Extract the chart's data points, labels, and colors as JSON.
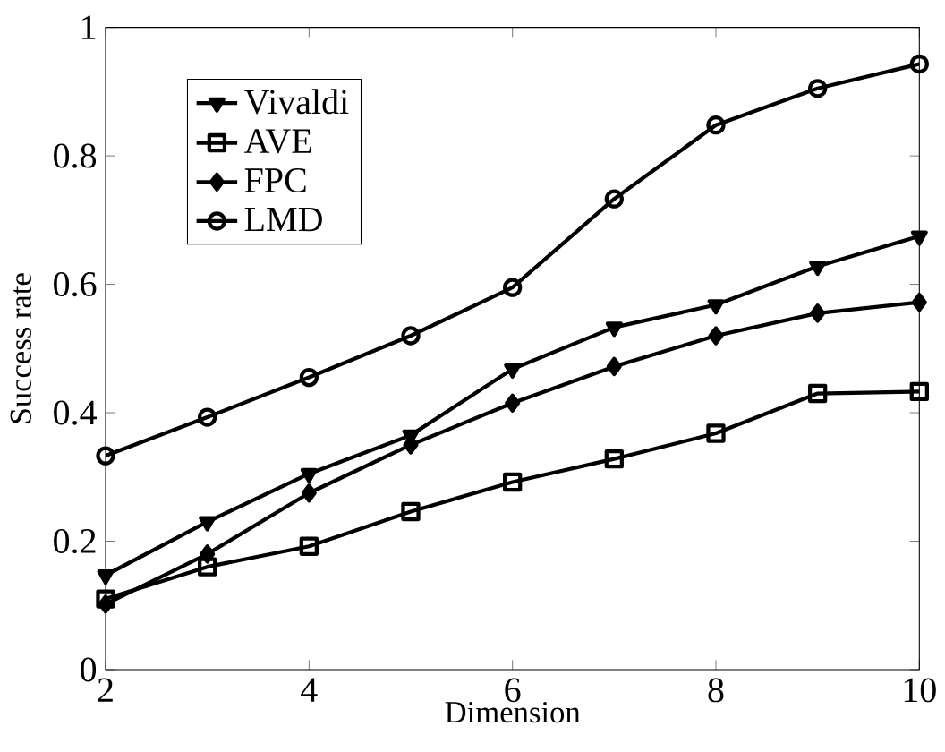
{
  "chart_data": {
    "type": "line",
    "xlabel": "Dimension",
    "ylabel": "Success rate",
    "x": [
      2,
      3,
      4,
      5,
      6,
      7,
      8,
      9,
      10
    ],
    "series": [
      {
        "name": "Vivaldi",
        "color": "#000000",
        "marker": "triangle",
        "values": [
          0.147,
          0.23,
          0.305,
          0.365,
          0.468,
          0.533,
          0.568,
          0.628,
          0.675
        ]
      },
      {
        "name": "AVE",
        "color": "#000000",
        "marker": "square",
        "values": [
          0.11,
          0.16,
          0.192,
          0.246,
          0.292,
          0.328,
          0.368,
          0.43,
          0.433
        ]
      },
      {
        "name": "FPC",
        "color": "#000000",
        "marker": "diamond",
        "values": [
          0.102,
          0.18,
          0.275,
          0.35,
          0.415,
          0.472,
          0.52,
          0.555,
          0.572
        ]
      },
      {
        "name": "LMD",
        "color": "#000000",
        "marker": "circle",
        "values": [
          0.333,
          0.393,
          0.455,
          0.52,
          0.595,
          0.733,
          0.848,
          0.905,
          0.943
        ]
      }
    ],
    "xlim": [
      2,
      10
    ],
    "ylim": [
      0,
      1
    ],
    "xticks": [
      2,
      4,
      6,
      8,
      10
    ],
    "yticks": [
      0,
      0.2,
      0.4,
      0.6,
      0.8,
      1
    ],
    "legend": "top left",
    "grid": false,
    "line_style": "solid"
  }
}
